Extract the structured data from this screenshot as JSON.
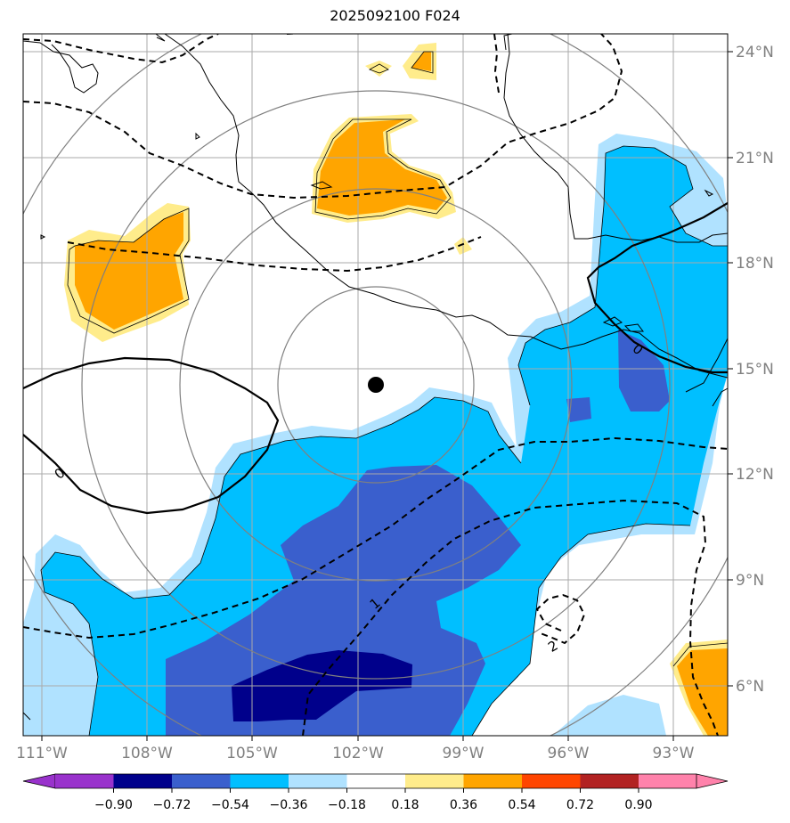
{
  "title": "2025092100 F024",
  "lat_labels": [
    "24°N",
    "21°N",
    "18°N",
    "15°N",
    "12°N",
    "9°N",
    "6°N"
  ],
  "lon_labels": [
    "111°W",
    "108°W",
    "105°W",
    "102°W",
    "99°W",
    "96°W",
    "93°W"
  ],
  "colorbar": {
    "tick_labels": [
      "−0.90",
      "−0.72",
      "−0.54",
      "−0.36",
      "−0.18",
      "0.18",
      "0.36",
      "0.54",
      "0.72",
      "0.90"
    ],
    "colors": [
      "#9932cc",
      "#00008b",
      "#3a5fcd",
      "#00bfff",
      "#b0e2ff",
      "#ffffff",
      "#ffec8b",
      "#ffa500",
      "#ff4500",
      "#b22222",
      "#ff82ab"
    ]
  },
  "contour_labels": [
    "0",
    "0",
    "1",
    "2"
  ],
  "colors": {
    "gridline": "#aaaaaa",
    "range_ring": "#808080",
    "coast": "#000000",
    "storm_center": "#000000",
    "tick_label": "#808080"
  }
}
